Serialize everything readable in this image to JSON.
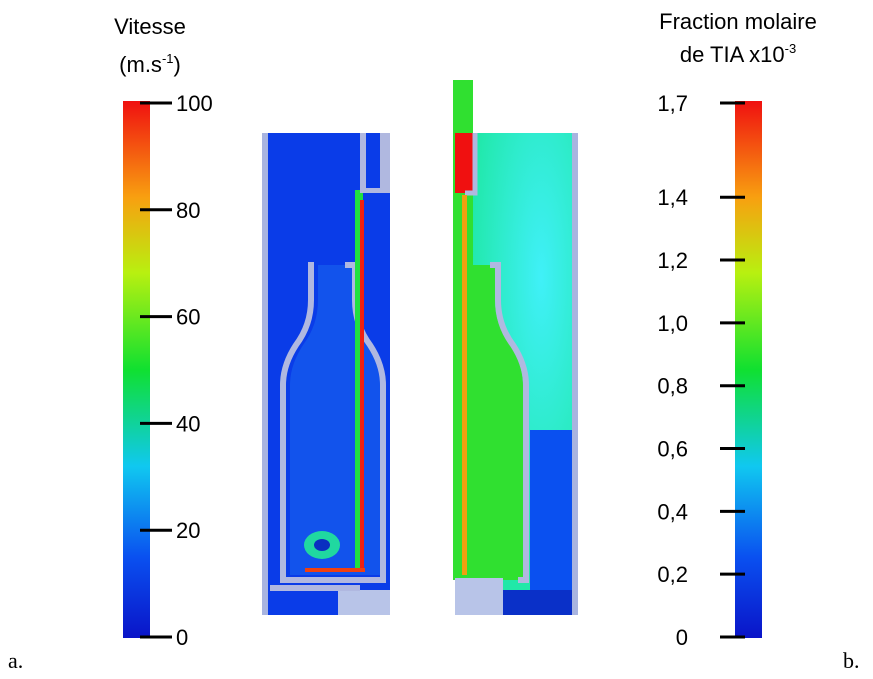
{
  "colorbars": [
    {
      "title": [
        "Vitesse",
        "(m.s",
        "-1",
        ")"
      ],
      "range": [
        0,
        100
      ],
      "ticks": [
        0,
        20,
        40,
        60,
        80,
        100
      ]
    },
    {
      "title": [
        "Fraction molaire",
        "de TIA x10",
        "-3"
      ],
      "range": [
        0,
        1.7
      ],
      "ticks": [
        0,
        {
          "value": 0.2,
          "label": "0,2"
        },
        {
          "value": 0.4,
          "label": "0,4"
        },
        {
          "value": 0.6,
          "label": "0,6"
        },
        {
          "value": 0.8,
          "label": "0,8"
        },
        {
          "value": 1.0,
          "label": "1,0"
        },
        {
          "value": 1.2,
          "label": "1,2"
        },
        {
          "value": 1.4,
          "label": "1,4"
        },
        {
          "value": 1.7,
          "label": "1,7"
        }
      ]
    }
  ],
  "panel_labels": [
    "a.",
    "b."
  ]
}
